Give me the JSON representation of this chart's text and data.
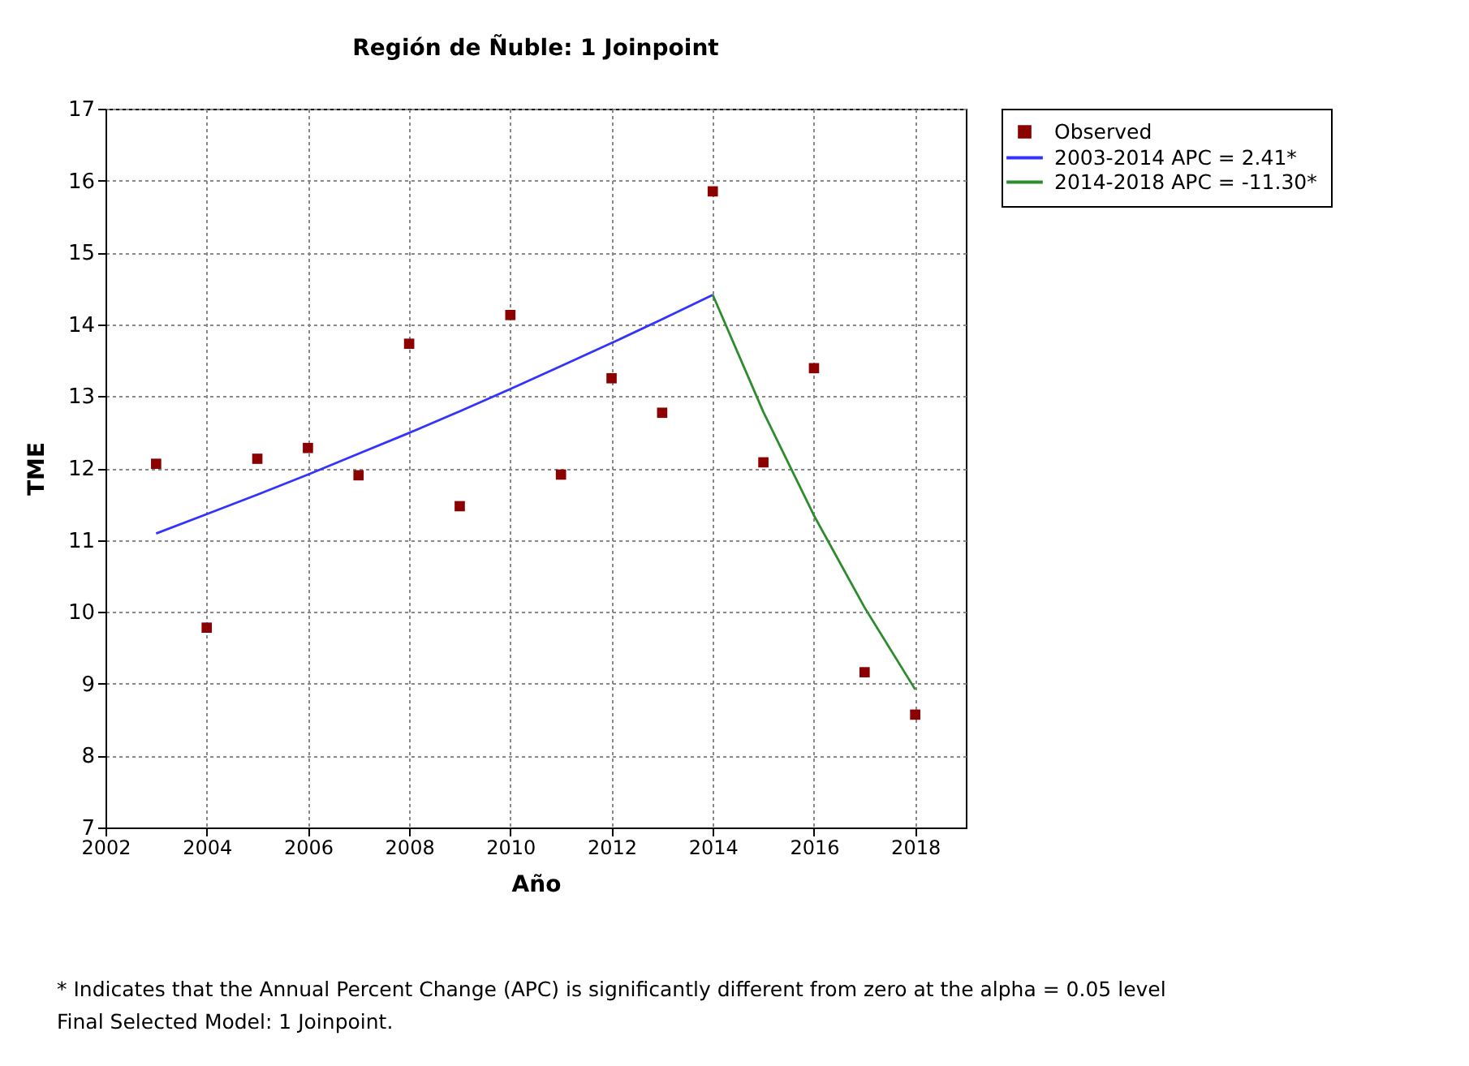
{
  "chart_data": {
    "type": "scatter",
    "title": "Región de Ñuble: 1 Joinpoint",
    "xlabel": "Año",
    "ylabel": "TME",
    "annotations": [
      "* Indicates that the Annual Percent Change (APC) is significantly different from zero at the alpha = 0.05 level",
      "Final Selected Model: 1 Joinpoint."
    ],
    "x": [
      2003,
      2004,
      2005,
      2006,
      2007,
      2008,
      2009,
      2010,
      2011,
      2012,
      2013,
      2014,
      2015,
      2016,
      2017,
      2018
    ],
    "series": [
      {
        "name": "Observed",
        "marker": "square",
        "color": "#8b0000",
        "values": [
          12.06,
          9.78,
          12.13,
          12.28,
          11.9,
          13.73,
          11.47,
          14.13,
          11.91,
          13.25,
          12.77,
          15.85,
          12.08,
          13.39,
          9.16,
          8.57
        ]
      },
      {
        "name": "2003-2014 APC =  2.41*",
        "type": "line",
        "color": "#3333ff",
        "x": [
          2003,
          2004,
          2005,
          2006,
          2007,
          2008,
          2009,
          2010,
          2011,
          2012,
          2013,
          2014
        ],
        "values": [
          11.09,
          11.36,
          11.63,
          11.91,
          12.2,
          12.49,
          12.79,
          13.1,
          13.42,
          13.74,
          14.07,
          14.41
        ]
      },
      {
        "name": "2014-2018 APC = -11.30*",
        "type": "line",
        "color": "#2e8b2e",
        "x": [
          2014,
          2015,
          2016,
          2017,
          2018
        ],
        "values": [
          14.41,
          12.78,
          11.34,
          10.06,
          8.92
        ]
      }
    ],
    "xlim": [
      2002,
      2019
    ],
    "xticks": [
      2002,
      2004,
      2006,
      2008,
      2010,
      2012,
      2014,
      2016,
      2018
    ],
    "ylim": [
      7,
      17
    ],
    "yticks": [
      7,
      8,
      9,
      10,
      11,
      12,
      13,
      14,
      15,
      16,
      17
    ],
    "grid": true,
    "legend": "top right",
    "line_style": "solid"
  }
}
